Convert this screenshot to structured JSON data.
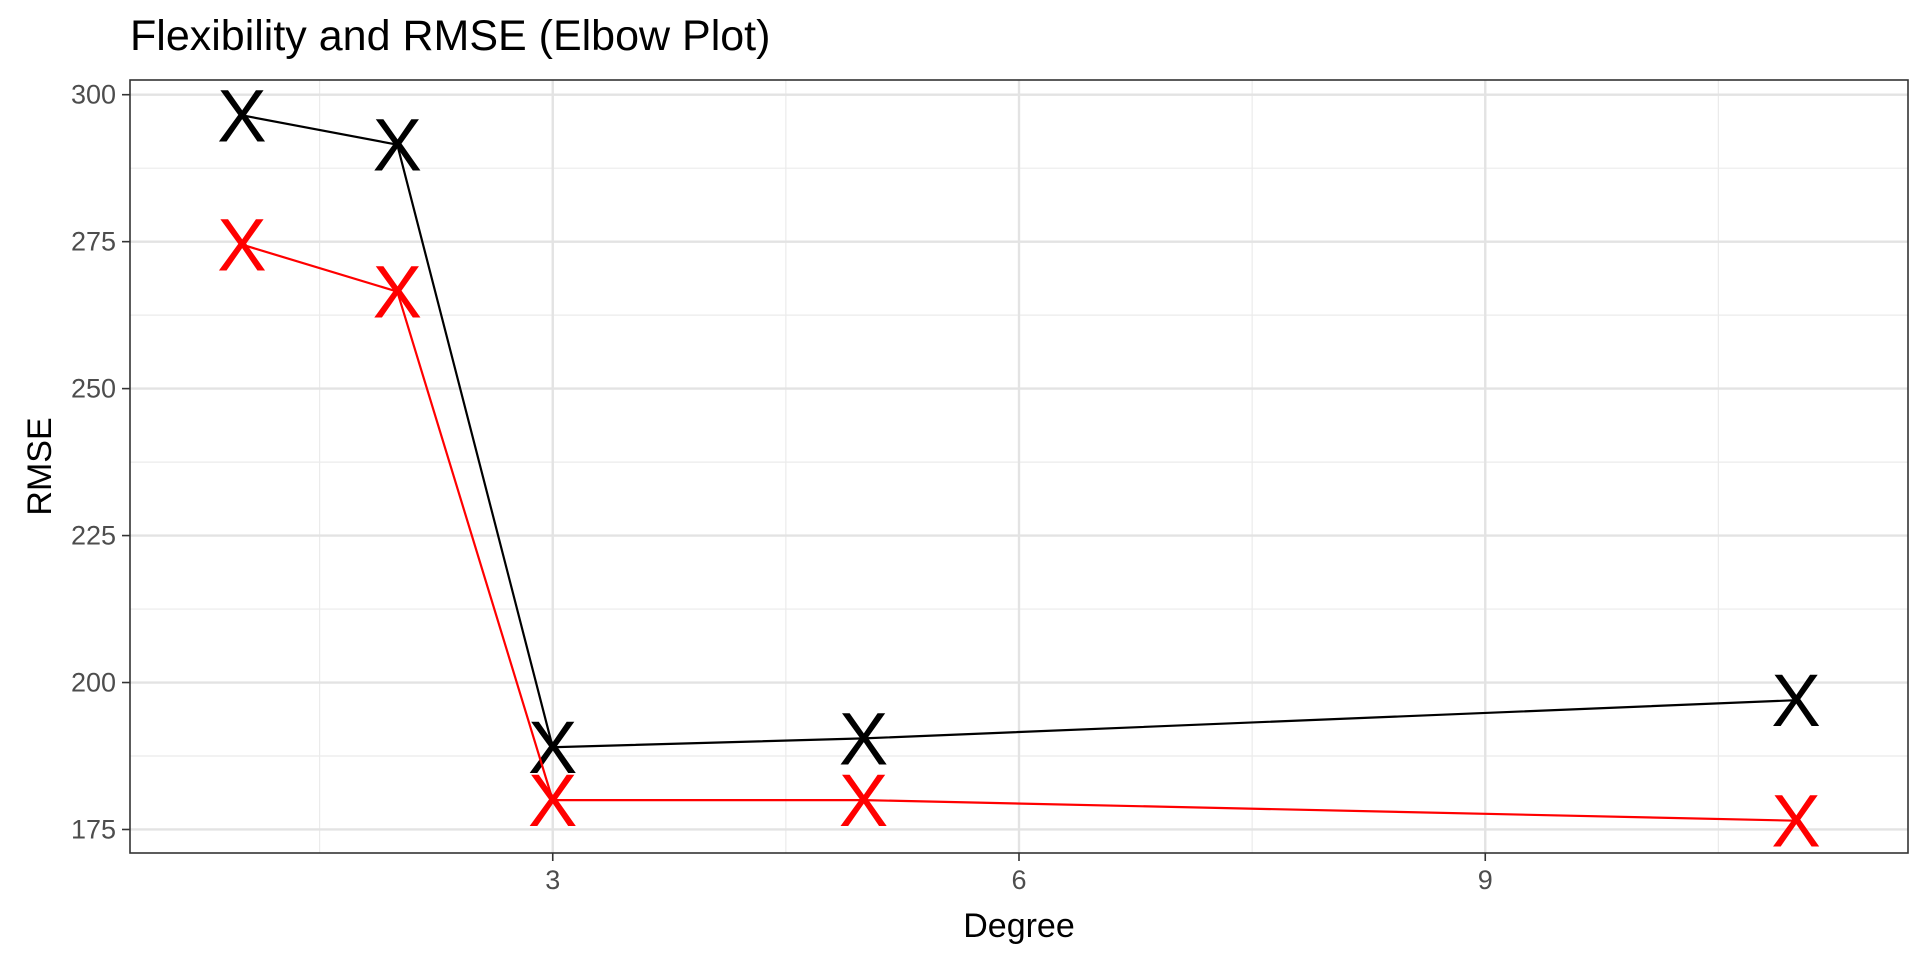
{
  "chart_data": {
    "type": "line",
    "title": "Flexibility and RMSE (Elbow Plot)",
    "xlabel": "Degree",
    "ylabel": "RMSE",
    "xlim": [
      0.28,
      11.72
    ],
    "ylim": [
      171.0,
      302.5
    ],
    "x_major_ticks": [
      3,
      6,
      9
    ],
    "y_major_ticks": [
      175,
      200,
      225,
      250,
      275,
      300
    ],
    "x_minor_ticks": [
      1.5,
      4.5,
      7.5,
      10.5
    ],
    "y_minor_ticks": [
      187.5,
      212.5,
      237.5,
      262.5,
      287.5
    ],
    "grid": true,
    "theme": "bw",
    "marker": "X",
    "series": [
      {
        "color": "#000000",
        "x": [
          1,
          2,
          3,
          5,
          11
        ],
        "y": [
          296.5,
          291.5,
          189.0,
          190.5,
          197.0
        ]
      },
      {
        "color": "#ff0000",
        "x": [
          1,
          2,
          3,
          5,
          11
        ],
        "y": [
          274.5,
          266.5,
          180.0,
          180.0,
          176.5
        ]
      }
    ]
  }
}
